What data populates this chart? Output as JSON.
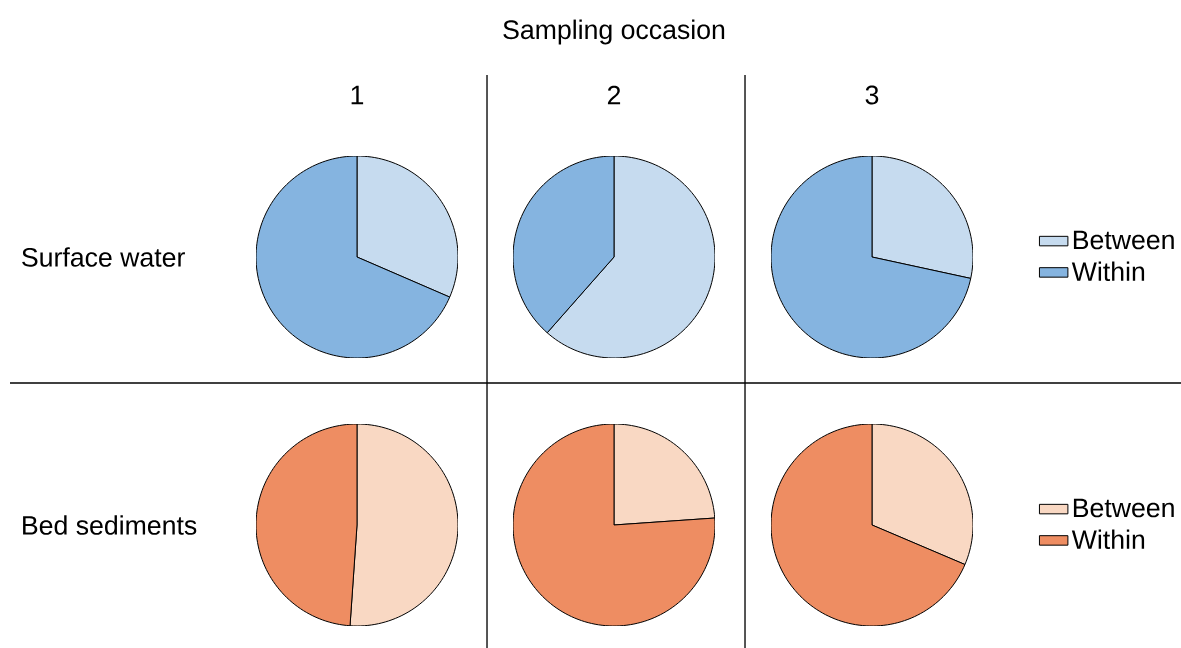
{
  "chart_data": [
    {
      "type": "pie",
      "title": "1",
      "ylabel": "Surface water",
      "categories": [
        null,
        null
      ],
      "values": [
        31.5,
        68.5
      ],
      "colors": [
        "#c6dbef",
        "#85b4e0"
      ],
      "legend": false
    },
    {
      "type": "pie",
      "title": "Sampling occasion",
      "subtitle": "2",
      "categories": [
        null,
        null
      ],
      "values": [
        61.5,
        38.5
      ],
      "colors": [
        "#c6dbef",
        "#85b4e0"
      ],
      "legend": false
    },
    {
      "type": "pie",
      "title": "3",
      "categories": [
        "Between",
        "Within"
      ],
      "values": [
        28.4,
        71.6
      ],
      "colors": [
        "#c6dbef",
        "#85b4e0"
      ],
      "legend": "right"
    },
    {
      "type": "pie",
      "ylabel": "Bed sediments",
      "categories": [
        null,
        null
      ],
      "values": [
        51.1,
        48.9
      ],
      "colors": [
        "#f9d8c3",
        "#ee8d62"
      ],
      "legend": false
    },
    {
      "type": "pie",
      "categories": [
        null,
        null
      ],
      "values": [
        23.9,
        76.1
      ],
      "colors": [
        "#f9d8c3",
        "#ee8d62"
      ],
      "legend": false
    },
    {
      "type": "pie",
      "categories": [
        "Between",
        "Within"
      ],
      "values": [
        31.4,
        68.6
      ],
      "colors": [
        "#f9d8c3",
        "#ee8d62"
      ],
      "legend": "right"
    }
  ]
}
